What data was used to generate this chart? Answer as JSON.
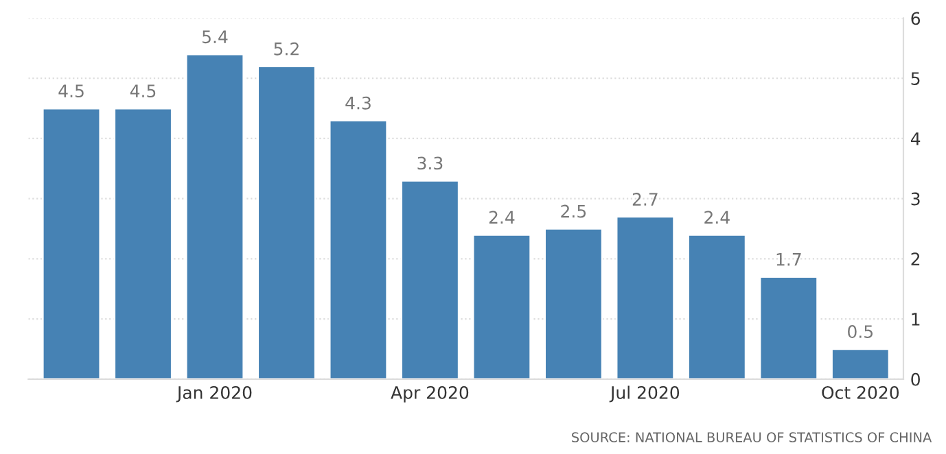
{
  "chart_data": {
    "type": "bar",
    "categories": [
      null,
      null,
      "Jan 2020",
      null,
      null,
      "Apr 2020",
      null,
      null,
      "Jul 2020",
      null,
      null,
      "Oct 2020"
    ],
    "values": [
      4.5,
      4.5,
      5.4,
      5.2,
      4.3,
      3.3,
      2.4,
      2.5,
      2.7,
      2.4,
      1.7,
      0.5
    ],
    "color": "#4682b4",
    "ylim": [
      0,
      6
    ],
    "yticks": [
      0,
      1,
      2,
      3,
      4,
      5,
      6
    ],
    "grid": "y",
    "data_labels": true,
    "annotations": [
      "SOURCE: NATIONAL BUREAU OF STATISTICS OF CHINA"
    ]
  }
}
